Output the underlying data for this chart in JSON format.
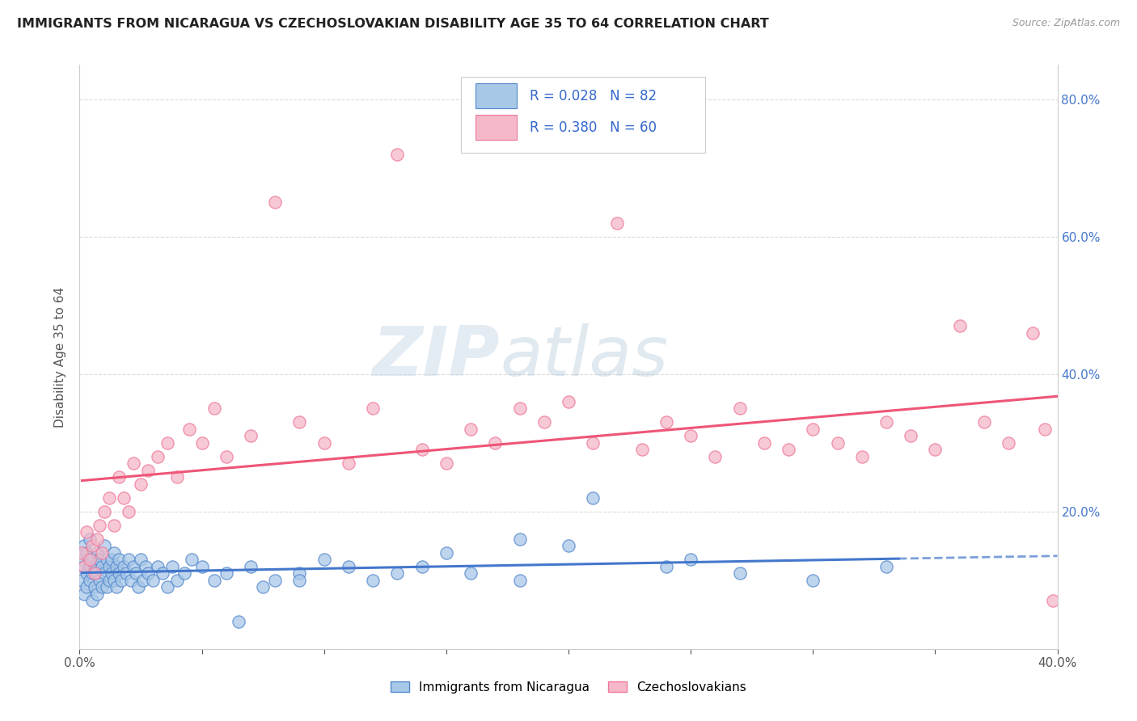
{
  "title": "IMMIGRANTS FROM NICARAGUA VS CZECHOSLOVAKIAN DISABILITY AGE 35 TO 64 CORRELATION CHART",
  "source": "Source: ZipAtlas.com",
  "ylabel": "Disability Age 35 to 64",
  "legend_label1": "Immigrants from Nicaragua",
  "legend_label2": "Czechoslovakians",
  "r1": 0.028,
  "n1": 82,
  "r2": 0.38,
  "n2": 60,
  "color1": "#a8c8e8",
  "color2": "#f5b8c8",
  "edge_color1": "#5588cc",
  "edge_color2": "#ee7799",
  "line_color1": "#4477cc",
  "line_color2": "#ee5577",
  "xlim": [
    0.0,
    0.4
  ],
  "ylim": [
    0.0,
    0.85
  ],
  "xticks": [
    0.0,
    0.05,
    0.1,
    0.15,
    0.2,
    0.25,
    0.3,
    0.35,
    0.4
  ],
  "yticks": [
    0.0,
    0.2,
    0.4,
    0.6,
    0.8
  ],
  "ytick_labels": [
    "",
    "20.0%",
    "40.0%",
    "60.0%",
    "80.0%"
  ],
  "background_color": "#ffffff",
  "grid_color": "#cccccc",
  "title_color": "#222222",
  "watermark_zip": "ZIP",
  "watermark_atlas": "atlas",
  "scatter1_x": [
    0.001,
    0.001,
    0.002,
    0.002,
    0.002,
    0.003,
    0.003,
    0.003,
    0.004,
    0.004,
    0.004,
    0.005,
    0.005,
    0.005,
    0.006,
    0.006,
    0.007,
    0.007,
    0.007,
    0.008,
    0.008,
    0.009,
    0.009,
    0.01,
    0.01,
    0.011,
    0.011,
    0.012,
    0.012,
    0.013,
    0.013,
    0.014,
    0.014,
    0.015,
    0.015,
    0.016,
    0.016,
    0.017,
    0.018,
    0.019,
    0.02,
    0.021,
    0.022,
    0.023,
    0.024,
    0.025,
    0.026,
    0.027,
    0.028,
    0.03,
    0.032,
    0.034,
    0.036,
    0.038,
    0.04,
    0.043,
    0.046,
    0.05,
    0.055,
    0.06,
    0.07,
    0.08,
    0.09,
    0.1,
    0.12,
    0.14,
    0.16,
    0.18,
    0.21,
    0.24,
    0.27,
    0.3,
    0.33,
    0.2,
    0.25,
    0.18,
    0.15,
    0.13,
    0.11,
    0.09,
    0.075,
    0.065
  ],
  "scatter1_y": [
    0.13,
    0.1,
    0.15,
    0.12,
    0.08,
    0.11,
    0.14,
    0.09,
    0.12,
    0.1,
    0.16,
    0.13,
    0.11,
    0.07,
    0.12,
    0.09,
    0.14,
    0.11,
    0.08,
    0.13,
    0.1,
    0.12,
    0.09,
    0.15,
    0.11,
    0.13,
    0.09,
    0.12,
    0.1,
    0.11,
    0.13,
    0.1,
    0.14,
    0.12,
    0.09,
    0.11,
    0.13,
    0.1,
    0.12,
    0.11,
    0.13,
    0.1,
    0.12,
    0.11,
    0.09,
    0.13,
    0.1,
    0.12,
    0.11,
    0.1,
    0.12,
    0.11,
    0.09,
    0.12,
    0.1,
    0.11,
    0.13,
    0.12,
    0.1,
    0.11,
    0.12,
    0.1,
    0.11,
    0.13,
    0.1,
    0.12,
    0.11,
    0.1,
    0.22,
    0.12,
    0.11,
    0.1,
    0.12,
    0.15,
    0.13,
    0.16,
    0.14,
    0.11,
    0.12,
    0.1,
    0.09,
    0.04
  ],
  "scatter2_x": [
    0.001,
    0.002,
    0.003,
    0.004,
    0.005,
    0.006,
    0.007,
    0.008,
    0.009,
    0.01,
    0.012,
    0.014,
    0.016,
    0.018,
    0.02,
    0.022,
    0.025,
    0.028,
    0.032,
    0.036,
    0.04,
    0.045,
    0.05,
    0.055,
    0.06,
    0.07,
    0.08,
    0.09,
    0.1,
    0.11,
    0.12,
    0.13,
    0.14,
    0.15,
    0.16,
    0.17,
    0.18,
    0.19,
    0.2,
    0.21,
    0.22,
    0.23,
    0.24,
    0.25,
    0.26,
    0.27,
    0.28,
    0.29,
    0.3,
    0.31,
    0.32,
    0.33,
    0.34,
    0.35,
    0.36,
    0.37,
    0.38,
    0.39,
    0.395,
    0.398
  ],
  "scatter2_y": [
    0.14,
    0.12,
    0.17,
    0.13,
    0.15,
    0.11,
    0.16,
    0.18,
    0.14,
    0.2,
    0.22,
    0.18,
    0.25,
    0.22,
    0.2,
    0.27,
    0.24,
    0.26,
    0.28,
    0.3,
    0.25,
    0.32,
    0.3,
    0.35,
    0.28,
    0.31,
    0.65,
    0.33,
    0.3,
    0.27,
    0.35,
    0.72,
    0.29,
    0.27,
    0.32,
    0.3,
    0.35,
    0.33,
    0.36,
    0.3,
    0.62,
    0.29,
    0.33,
    0.31,
    0.28,
    0.35,
    0.3,
    0.29,
    0.32,
    0.3,
    0.28,
    0.33,
    0.31,
    0.29,
    0.47,
    0.33,
    0.3,
    0.46,
    0.32,
    0.07
  ]
}
